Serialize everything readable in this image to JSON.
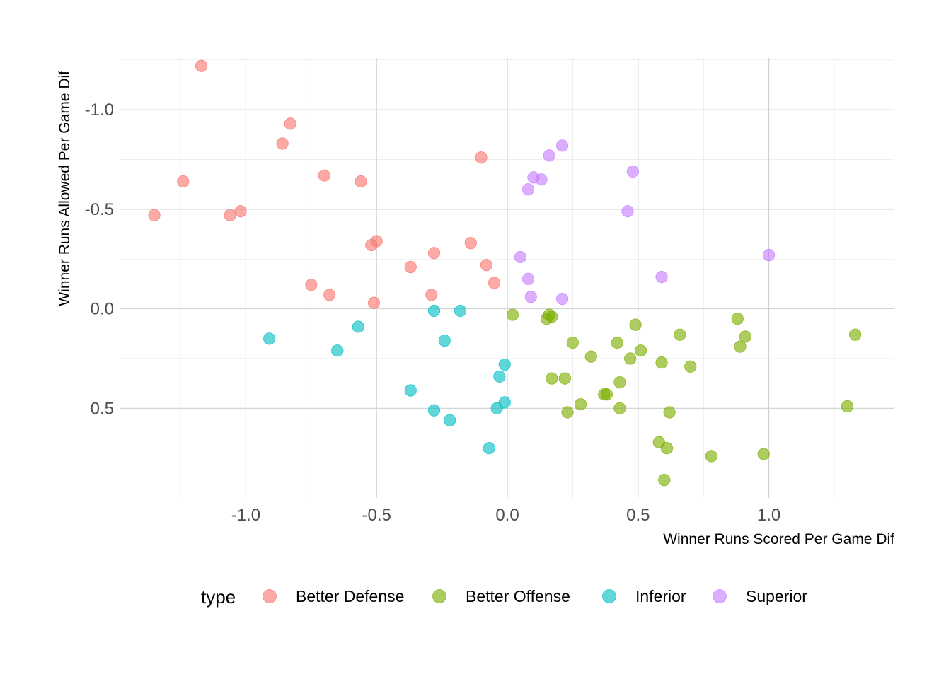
{
  "chart_data": {
    "type": "scatter",
    "xlabel": "Winner Runs Scored Per Game Dif",
    "ylabel": "Winner Runs Allowed Per Game Dif",
    "y_reversed": true,
    "xlim": [
      -1.48,
      1.48
    ],
    "ylim": [
      -1.26,
      0.95
    ],
    "x_ticks": [
      -1.0,
      -0.5,
      0.0,
      0.5,
      1.0
    ],
    "x_tick_labels": [
      "-1.0",
      "-0.5",
      "0.0",
      "0.5",
      "1.0"
    ],
    "y_ticks": [
      -1.0,
      -0.5,
      0.0,
      0.5
    ],
    "y_tick_labels": [
      "-1.0",
      "-0.5",
      "0.0",
      "0.5"
    ],
    "grid": true,
    "legend": {
      "title": "type",
      "position": "bottom"
    },
    "series": [
      {
        "name": "Better Defense",
        "color": "#F8766D",
        "points": [
          [
            -1.17,
            -1.22
          ],
          [
            -0.83,
            -0.93
          ],
          [
            -0.86,
            -0.83
          ],
          [
            -1.24,
            -0.64
          ],
          [
            -0.7,
            -0.67
          ],
          [
            -0.56,
            -0.64
          ],
          [
            -0.1,
            -0.76
          ],
          [
            -1.35,
            -0.47
          ],
          [
            -1.06,
            -0.47
          ],
          [
            -1.02,
            -0.49
          ],
          [
            -0.52,
            -0.32
          ],
          [
            -0.5,
            -0.34
          ],
          [
            -0.14,
            -0.33
          ],
          [
            -0.28,
            -0.28
          ],
          [
            -0.37,
            -0.21
          ],
          [
            -0.08,
            -0.22
          ],
          [
            -0.75,
            -0.12
          ],
          [
            -0.68,
            -0.07
          ],
          [
            -0.29,
            -0.07
          ],
          [
            -0.51,
            -0.03
          ],
          [
            -0.05,
            -0.13
          ]
        ]
      },
      {
        "name": "Better Offense",
        "color": "#7CAE00",
        "points": [
          [
            0.02,
            0.03
          ],
          [
            0.15,
            0.05
          ],
          [
            0.16,
            0.03
          ],
          [
            0.17,
            0.04
          ],
          [
            0.49,
            0.08
          ],
          [
            0.88,
            0.05
          ],
          [
            0.91,
            0.14
          ],
          [
            1.33,
            0.13
          ],
          [
            0.66,
            0.13
          ],
          [
            0.25,
            0.17
          ],
          [
            0.42,
            0.17
          ],
          [
            0.89,
            0.19
          ],
          [
            0.51,
            0.21
          ],
          [
            0.32,
            0.24
          ],
          [
            0.47,
            0.25
          ],
          [
            0.59,
            0.27
          ],
          [
            0.7,
            0.29
          ],
          [
            0.17,
            0.35
          ],
          [
            0.22,
            0.35
          ],
          [
            0.43,
            0.37
          ],
          [
            0.37,
            0.43
          ],
          [
            0.38,
            0.43
          ],
          [
            0.28,
            0.48
          ],
          [
            0.43,
            0.5
          ],
          [
            0.23,
            0.52
          ],
          [
            0.62,
            0.52
          ],
          [
            1.3,
            0.49
          ],
          [
            0.58,
            0.67
          ],
          [
            0.61,
            0.7
          ],
          [
            0.78,
            0.74
          ],
          [
            0.98,
            0.73
          ],
          [
            0.6,
            0.86
          ]
        ]
      },
      {
        "name": "Inferior",
        "color": "#00BFC4",
        "points": [
          [
            -0.28,
            0.01
          ],
          [
            -0.18,
            0.01
          ],
          [
            -0.57,
            0.09
          ],
          [
            -0.91,
            0.15
          ],
          [
            -0.65,
            0.21
          ],
          [
            -0.24,
            0.16
          ],
          [
            -0.01,
            0.28
          ],
          [
            -0.03,
            0.34
          ],
          [
            -0.37,
            0.41
          ],
          [
            -0.28,
            0.51
          ],
          [
            -0.22,
            0.56
          ],
          [
            -0.01,
            0.47
          ],
          [
            -0.04,
            0.5
          ],
          [
            -0.07,
            0.7
          ]
        ]
      },
      {
        "name": "Superior",
        "color": "#C77CFF",
        "points": [
          [
            0.21,
            -0.82
          ],
          [
            0.16,
            -0.77
          ],
          [
            0.48,
            -0.69
          ],
          [
            0.1,
            -0.66
          ],
          [
            0.13,
            -0.65
          ],
          [
            0.08,
            -0.6
          ],
          [
            0.46,
            -0.49
          ],
          [
            1.0,
            -0.27
          ],
          [
            0.05,
            -0.26
          ],
          [
            0.08,
            -0.15
          ],
          [
            0.59,
            -0.16
          ],
          [
            0.09,
            -0.06
          ],
          [
            0.21,
            -0.05
          ]
        ]
      }
    ]
  }
}
